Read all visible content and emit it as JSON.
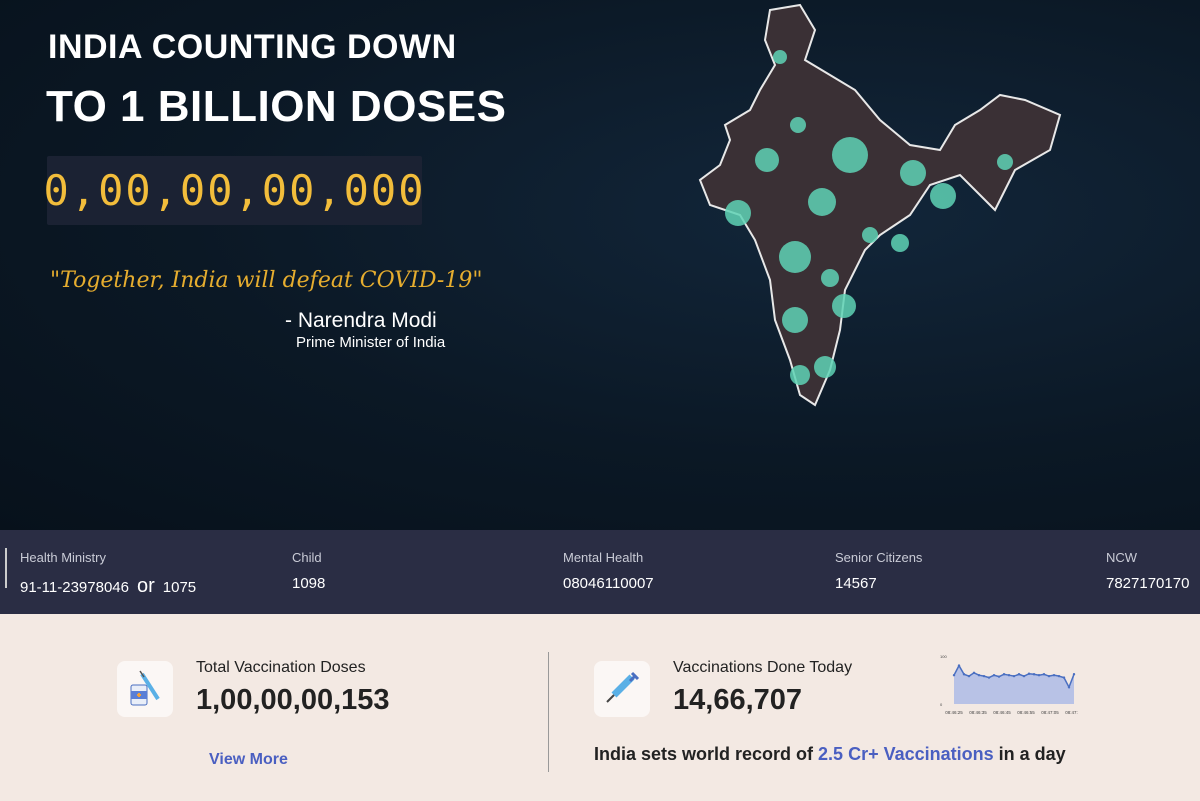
{
  "hero": {
    "title_line1": "INDIA COUNTING DOWN",
    "title_line2": "TO 1 BILLION DOSES",
    "counter": "0,00,00,00,000",
    "quote": "\"Together, India will defeat COVID-19\"",
    "author": "- Narendra Modi",
    "author_role": "Prime Minister of India"
  },
  "helplines": [
    {
      "label": "Health Ministry",
      "value": "91-11-23978046",
      "or": "or",
      "alt": "1075"
    },
    {
      "label": "Child",
      "value": "1098"
    },
    {
      "label": "Mental Health",
      "value": "08046110007"
    },
    {
      "label": "Senior Citizens",
      "value": "14567"
    },
    {
      "label": "NCW",
      "value": "7827170170"
    }
  ],
  "stats": {
    "total": {
      "label": "Total Vaccination Doses",
      "value": "1,00,00,00,153",
      "icon": "vaccine-vial-icon",
      "link": "View More"
    },
    "today": {
      "label": "Vaccinations Done Today",
      "value": "14,66,707",
      "icon": "syringe-icon"
    },
    "record": {
      "prefix": "India sets world record of ",
      "highlight": "2.5 Cr+ Vaccinations",
      "suffix": " in a day"
    }
  },
  "colors": {
    "counter": "#f2bd3b",
    "accent": "#4a5fc1",
    "bar": "#2a2d44",
    "map_bubble": "#5fd3b5"
  },
  "chart_data": {
    "type": "area",
    "y_ticks": [
      "100",
      "0"
    ],
    "x_ticks": [
      "08:46:25",
      "08:46:35",
      "08:46:45",
      "08:46:55",
      "08:47:05",
      "08:47:15"
    ],
    "ylim": [
      0,
      100
    ],
    "values": [
      60,
      80,
      62,
      58,
      65,
      60,
      58,
      55,
      60,
      57,
      62,
      60,
      58,
      62,
      58,
      63,
      62,
      60,
      62,
      58,
      60,
      58,
      55,
      35,
      62
    ]
  }
}
